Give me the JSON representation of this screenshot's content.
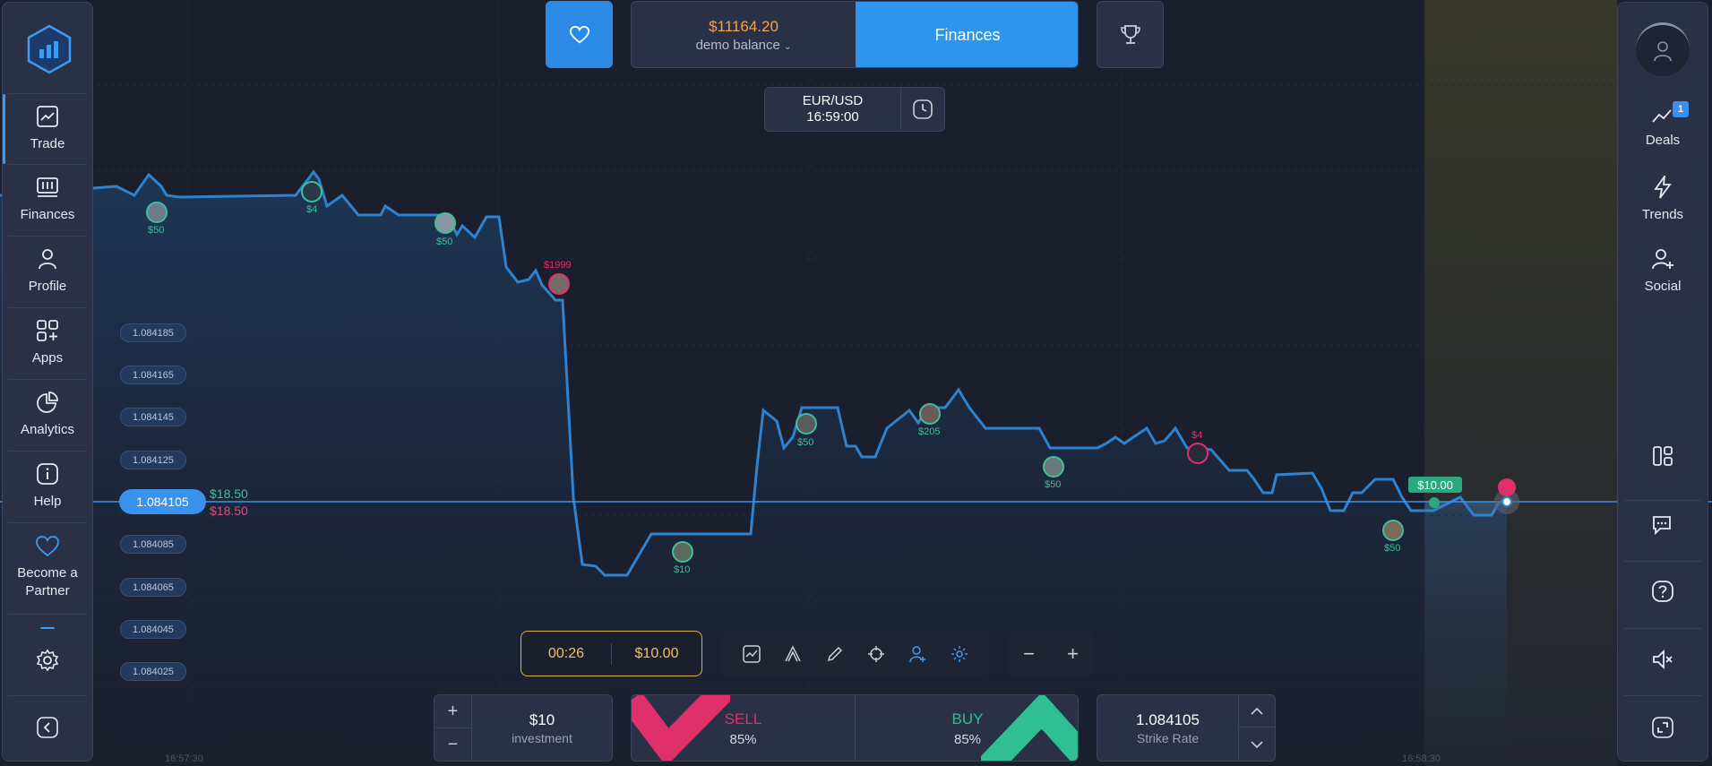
{
  "header": {
    "balance_amount": "$11164.20",
    "balance_label": "demo balance",
    "finances_label": "Finances"
  },
  "asset": {
    "pair": "EUR/USD",
    "time": "16:59:00"
  },
  "left_sidebar": {
    "items": [
      {
        "label": "Trade",
        "icon": "chart-icon"
      },
      {
        "label": "Finances",
        "icon": "finances-icon"
      },
      {
        "label": "Profile",
        "icon": "user-icon"
      },
      {
        "label": "Apps",
        "icon": "apps-icon"
      },
      {
        "label": "Analytics",
        "icon": "analytics-icon"
      },
      {
        "label": "Help",
        "icon": "info-icon"
      },
      {
        "label": "Become a Partner",
        "icon": "heart-icon"
      }
    ]
  },
  "right_sidebar": {
    "items": [
      {
        "label": "Deals",
        "icon": "deals-icon",
        "badge": "1"
      },
      {
        "label": "Trends",
        "icon": "lightning-icon"
      },
      {
        "label": "Social",
        "icon": "add-user-icon"
      }
    ]
  },
  "price_axis": {
    "labels": [
      "1.084185",
      "1.084165",
      "1.084145",
      "1.084125",
      "1.084085",
      "1.084065",
      "1.084045",
      "1.084025"
    ],
    "current": "1.084105",
    "payout_up": "$18.50",
    "payout_down": "$18.50"
  },
  "time_axis": {
    "labels": [
      "16:57:30",
      "16:58:30"
    ]
  },
  "chart_annotations": [
    {
      "label": "$50",
      "color": "#3fbf9a"
    },
    {
      "label": "$4",
      "color": "#3fbf9a"
    },
    {
      "label": "$50",
      "color": "#3fbf9a"
    },
    {
      "label": "$1999",
      "color": "#e0306c"
    },
    {
      "label": "$10",
      "color": "#3fbf9a"
    },
    {
      "label": "$50",
      "color": "#3fbf9a"
    },
    {
      "label": "$205",
      "color": "#3fbf9a"
    },
    {
      "label": "$50",
      "color": "#3fbf9a"
    },
    {
      "label": "$4",
      "color": "#e0306c"
    },
    {
      "label": "$50",
      "color": "#3fbf9a"
    }
  ],
  "open_deal": "$10.00",
  "trade_controls": {
    "timer": "00:26",
    "amount": "$10.00",
    "investment_value": "$10",
    "investment_label": "investment",
    "sell_label": "SELL",
    "sell_pct": "85%",
    "buy_label": "BUY",
    "buy_pct": "85%",
    "strike_value": "1.084105",
    "strike_label": "Strike Rate"
  },
  "colors": {
    "accent": "#2e95ee",
    "up": "#3fbf9a",
    "down": "#e0306c",
    "balance": "#f4a44b"
  }
}
